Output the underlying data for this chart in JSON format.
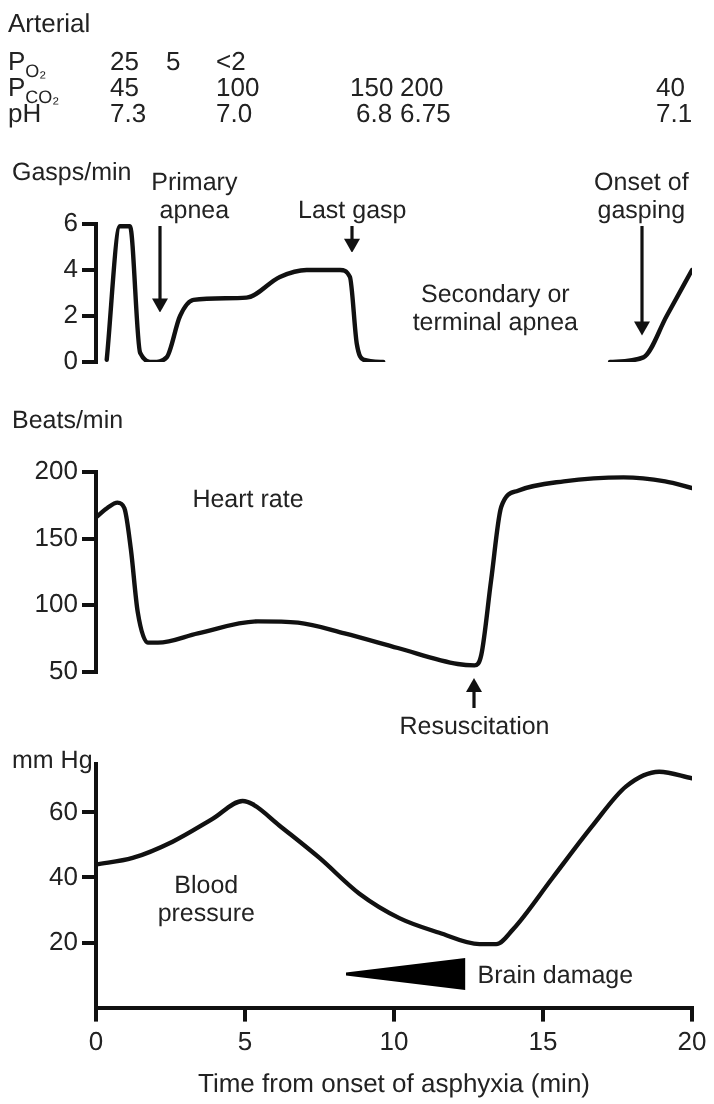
{
  "chart_data": [
    {
      "type": "other",
      "title": "Arterial",
      "annotations": [
        "P$_{O₂}$",
        "25",
        "5",
        "<2",
        "P$_{CO₂}$",
        "45",
        "100",
        "150",
        "200",
        "40",
        "pH",
        "7.3",
        "7.0",
        "6.8",
        "6.75",
        "7.1"
      ]
    },
    {
      "type": "line",
      "ylabel": "Gasps/min",
      "xlim": [
        0,
        20
      ],
      "ylim": [
        0,
        6
      ],
      "yticks": [
        0,
        2,
        4,
        6
      ],
      "tick_labels": "y",
      "marker": "none",
      "color": "#111111",
      "x": [
        0.36,
        0.8,
        1.14,
        1.48,
        1.92,
        2.37,
        2.82,
        3.27,
        5.05,
        6.17,
        7.07,
        8.19,
        8.52,
        8.75,
        8.97,
        9.64,
        13.4,
        17.25,
        18.37,
        19.15,
        20
      ],
      "values": [
        0.1,
        5.9,
        5.9,
        0.4,
        0,
        0.2,
        2,
        2.7,
        2.8,
        3.7,
        4,
        4,
        3.7,
        0.8,
        0.1,
        0,
        null,
        0,
        0.2,
        2,
        4
      ],
      "annotations": [
        "Primary apnea",
        "Last gasp",
        "Onset of gasping",
        "Secondary or terminal apnea"
      ]
    },
    {
      "type": "line",
      "ylabel": "Beats/min",
      "xlim": [
        0,
        20
      ],
      "ylim": [
        50,
        200
      ],
      "yticks": [
        50,
        100,
        150,
        200
      ],
      "tick_labels": "y",
      "marker": "none",
      "series": [
        {
          "name": "Heart rate",
          "color": "#111111",
          "x": [
            0,
            0.38,
            0.72,
            0.95,
            1.17,
            1.4,
            1.74,
            2.08,
            3.42,
            5.43,
            6.78,
            8.34,
            10.13,
            12.14,
            12.7,
            12.93,
            13.26,
            13.6,
            14.16,
            15.7,
            17.7,
            19.1,
            20
          ],
          "values": [
            166,
            173,
            177,
            173,
            142,
            95,
            72,
            72,
            79,
            88,
            87,
            79,
            68,
            56,
            55,
            63,
            119,
            174,
            186,
            193,
            196,
            193,
            188
          ]
        }
      ],
      "annotations": [
        "Resuscitation"
      ]
    },
    {
      "type": "line",
      "ylabel": "mm Hg",
      "xlabel": "Time from onset of asphyxia (min)",
      "xlim": [
        0,
        20
      ],
      "ylim": [
        0,
        75
      ],
      "xticks": [
        0,
        5,
        10,
        15,
        20
      ],
      "yticks": [
        20,
        40,
        60
      ],
      "marker": "none",
      "series": [
        {
          "name": "Blood pressure",
          "color": "#111111",
          "x": [
            0,
            1.23,
            2.57,
            3.91,
            4.92,
            5.26,
            6.15,
            7.5,
            8.84,
            10.18,
            11.52,
            12.87,
            13.43,
            13.99,
            15.33,
            16.67,
            17.79,
            18.9,
            20
          ],
          "values": [
            44,
            46,
            51,
            58,
            63.5,
            62.5,
            56,
            46,
            35,
            27.5,
            23,
            19.5,
            19.5,
            24,
            40,
            56,
            68,
            72.5,
            70.5
          ]
        }
      ],
      "annotations": [
        "Brain damage"
      ]
    }
  ]
}
